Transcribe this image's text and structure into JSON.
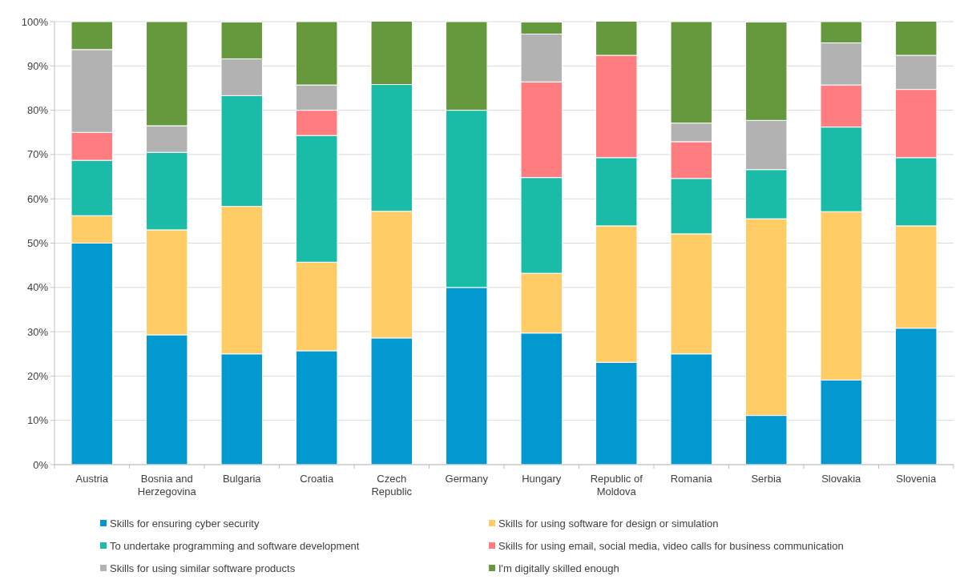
{
  "chart_data": {
    "type": "bar",
    "stacked": true,
    "categories": [
      "Austria",
      "Bosnia and Herzegovina",
      "Bulgaria",
      "Croatia",
      "Czech Republic",
      "Germany",
      "Hungary",
      "Republic of Moldova",
      "Romania",
      "Serbia",
      "Slovakia",
      "Slovenia"
    ],
    "series": [
      {
        "name": "Skills for ensuring cyber security",
        "color": "#0199cf",
        "values": [
          50,
          29.3,
          25,
          25.7,
          28.6,
          40,
          29.7,
          23.1,
          25,
          11.1,
          19.1,
          30.8
        ]
      },
      {
        "name": "Skills for using software for design or simulation",
        "color": "#ffcc66",
        "values": [
          6.2,
          23.7,
          33.3,
          20,
          28.6,
          null,
          13.5,
          30.8,
          27.1,
          44.4,
          38,
          23.1
        ]
      },
      {
        "name": "To undertake programming and software development",
        "color": "#1abca7",
        "values": [
          12.5,
          17.5,
          25,
          28.6,
          28.6,
          40,
          21.6,
          15.4,
          12.5,
          11.1,
          19.1,
          15.4
        ]
      },
      {
        "name": "Skills for using email, social media, video calls for business communication",
        "color": "#ff7c80",
        "values": [
          6.3,
          null,
          null,
          5.7,
          null,
          null,
          21.6,
          23.1,
          8.3,
          null,
          9.5,
          15.4
        ]
      },
      {
        "name": "Skills for using similar software products",
        "color": "#b2b2b2",
        "values": [
          18.7,
          6,
          8.3,
          5.7,
          null,
          null,
          10.8,
          null,
          4.2,
          11.1,
          9.5,
          7.7
        ]
      },
      {
        "name": "I'm digitally skilled enough",
        "color": "#66993d",
        "values": [
          6.3,
          23.5,
          8.3,
          14.3,
          14.3,
          20,
          2.7,
          7.7,
          22.9,
          22.2,
          4.8,
          7.7
        ]
      }
    ],
    "ylim": [
      0,
      100
    ],
    "yticks": [
      {
        "value": 0,
        "label": "0%"
      },
      {
        "value": 10,
        "label": "10%"
      },
      {
        "value": 20,
        "label": "20%"
      },
      {
        "value": 30,
        "label": "30%"
      },
      {
        "value": 40,
        "label": "40%"
      },
      {
        "value": 50,
        "label": "50%"
      },
      {
        "value": 60,
        "label": "60%"
      },
      {
        "value": 70,
        "label": "70%"
      },
      {
        "value": 80,
        "label": "80%"
      },
      {
        "value": 90,
        "label": "90%"
      },
      {
        "value": 100,
        "label": "100%"
      }
    ],
    "grid": "y",
    "legend": "bottom"
  }
}
